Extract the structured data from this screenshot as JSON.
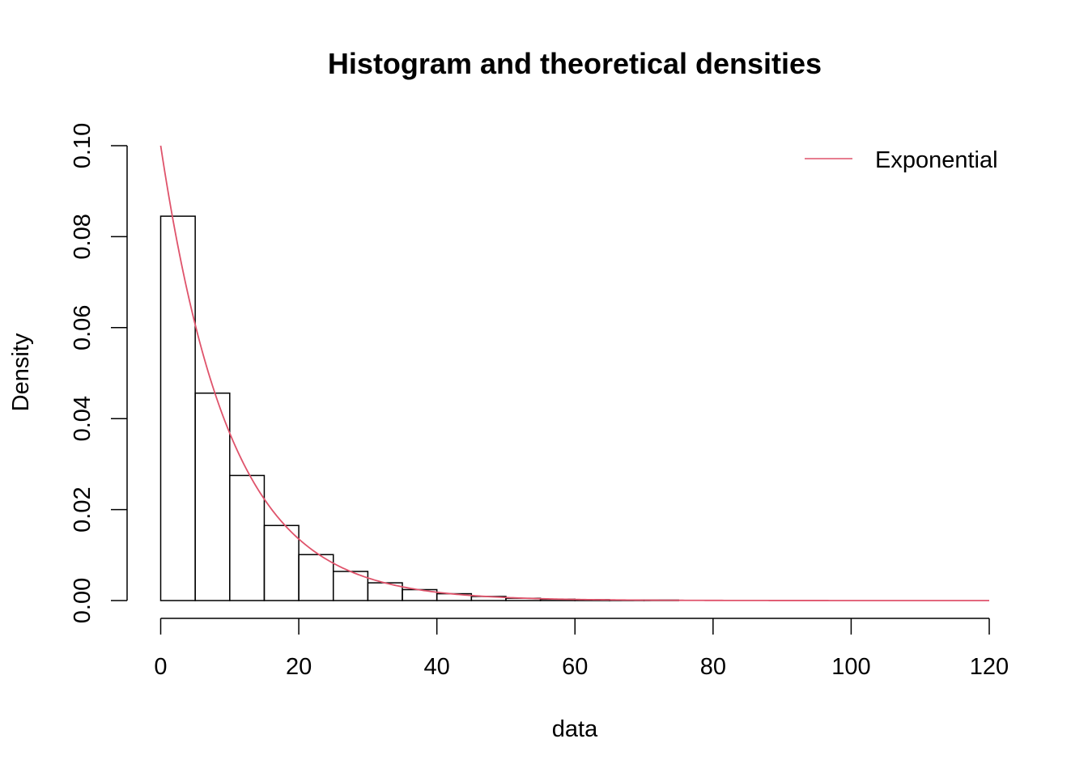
{
  "chart_data": {
    "type": "bar",
    "title": "Histogram and theoretical densities",
    "xlabel": "data",
    "ylabel": "Density",
    "xlim": [
      0,
      120
    ],
    "ylim": [
      0,
      0.1
    ],
    "x_ticks": [
      "0",
      "20",
      "40",
      "60",
      "80",
      "100",
      "120"
    ],
    "y_ticks": [
      "0.00",
      "0.02",
      "0.04",
      "0.06",
      "0.08",
      "0.10"
    ],
    "bin_width": 5,
    "bins": [
      {
        "start": 0,
        "end": 5,
        "density": 0.0845
      },
      {
        "start": 5,
        "end": 10,
        "density": 0.0456
      },
      {
        "start": 10,
        "end": 15,
        "density": 0.0275
      },
      {
        "start": 15,
        "end": 20,
        "density": 0.0165
      },
      {
        "start": 20,
        "end": 25,
        "density": 0.0101
      },
      {
        "start": 25,
        "end": 30,
        "density": 0.0064
      },
      {
        "start": 30,
        "end": 35,
        "density": 0.0039
      },
      {
        "start": 35,
        "end": 40,
        "density": 0.0024
      },
      {
        "start": 40,
        "end": 45,
        "density": 0.0015
      },
      {
        "start": 45,
        "end": 50,
        "density": 0.0009
      },
      {
        "start": 50,
        "end": 55,
        "density": 0.0005
      },
      {
        "start": 55,
        "end": 60,
        "density": 0.0003
      },
      {
        "start": 60,
        "end": 65,
        "density": 0.0002
      },
      {
        "start": 65,
        "end": 70,
        "density": 0.0001
      },
      {
        "start": 70,
        "end": 75,
        "density": 0.0001
      },
      {
        "start": 75,
        "end": 80,
        "density": 0.0
      },
      {
        "start": 80,
        "end": 85,
        "density": 0.0
      },
      {
        "start": 85,
        "end": 90,
        "density": 0.0
      },
      {
        "start": 90,
        "end": 95,
        "density": 0.0
      },
      {
        "start": 95,
        "end": 100,
        "density": 0.0
      },
      {
        "start": 100,
        "end": 105,
        "density": 0.0
      },
      {
        "start": 105,
        "end": 110,
        "density": 0.0
      },
      {
        "start": 110,
        "end": 115,
        "density": 0.0
      },
      {
        "start": 115,
        "end": 120,
        "density": 0.0
      }
    ],
    "series": [
      {
        "name": "Exponential",
        "kind": "line",
        "distribution": "exponential",
        "rate": 0.1,
        "color": "#DF536B"
      }
    ],
    "legend": {
      "position": "top-right",
      "entries": [
        "Exponential"
      ]
    },
    "grid": false
  }
}
